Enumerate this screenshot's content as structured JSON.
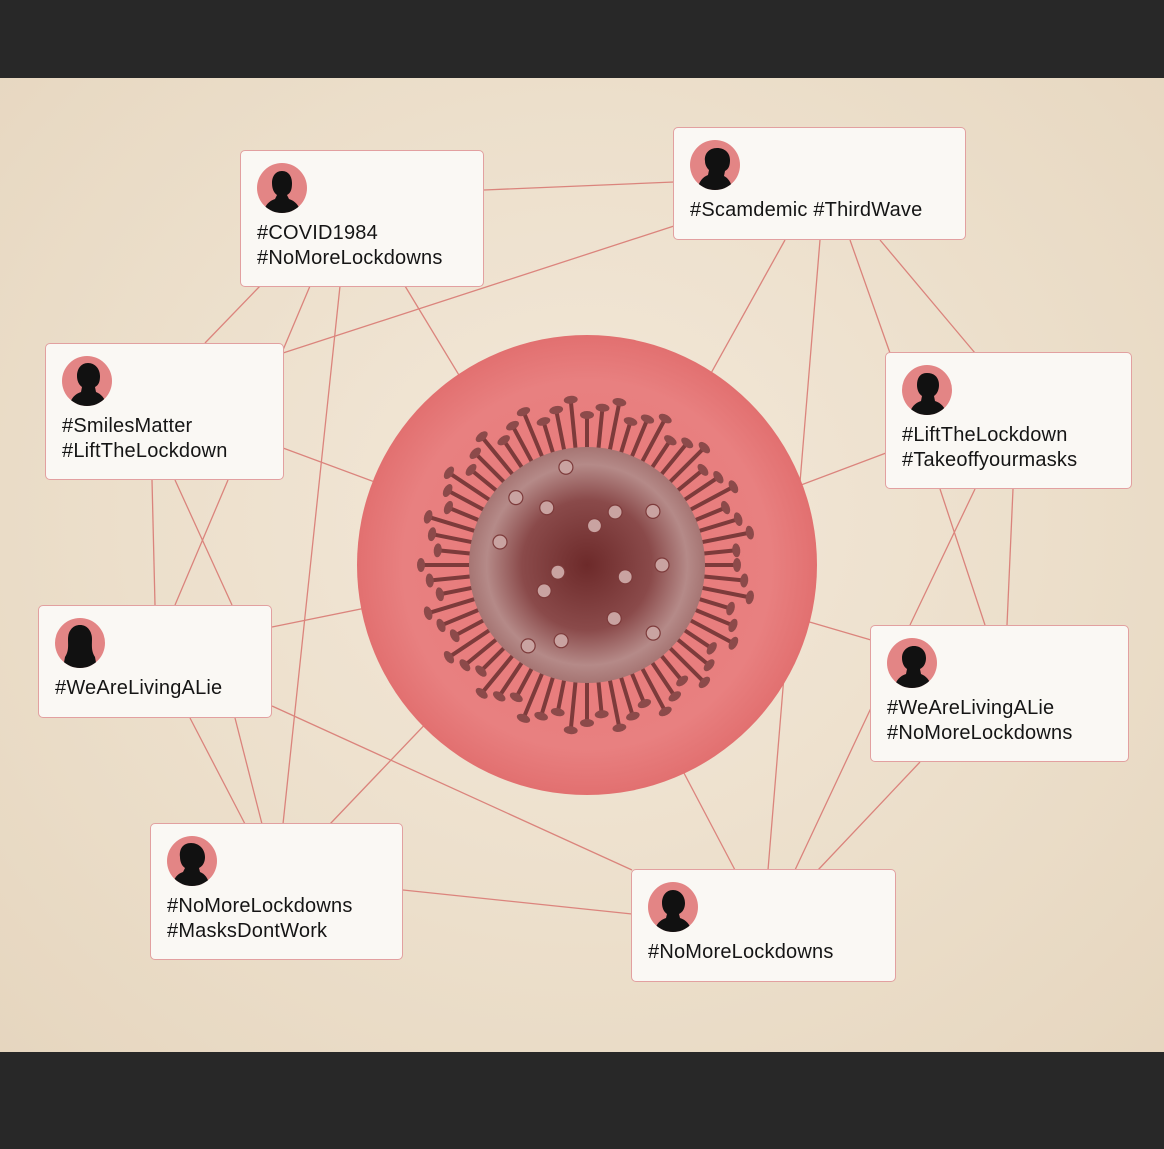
{
  "colors": {
    "background": "#ecdfcb",
    "accent": "#e57373",
    "link": "#d97a74",
    "card_border": "#e2a0a0",
    "virus": "#7d3b3b"
  },
  "center": {
    "icon": "coronavirus-icon"
  },
  "nodes": [
    {
      "id": "n1",
      "tags": [
        "#COVID1984",
        "#NoMoreLockdowns"
      ]
    },
    {
      "id": "n2",
      "tags": [
        "#Scamdemic #ThirdWave"
      ]
    },
    {
      "id": "n3",
      "tags": [
        "#SmilesMatter",
        "#LiftTheLockdown"
      ]
    },
    {
      "id": "n4",
      "tags": [
        "#LiftTheLockdown",
        "#Takeoffyourmasks"
      ]
    },
    {
      "id": "n5",
      "tags": [
        "#WeAreLivingALie"
      ]
    },
    {
      "id": "n6",
      "tags": [
        "#WeAreLivingALie",
        "#NoMoreLockdowns"
      ]
    },
    {
      "id": "n7",
      "tags": [
        "#NoMoreLockdowns",
        "#MasksDontWork"
      ]
    },
    {
      "id": "n8",
      "tags": [
        "#NoMoreLockdowns"
      ]
    }
  ]
}
